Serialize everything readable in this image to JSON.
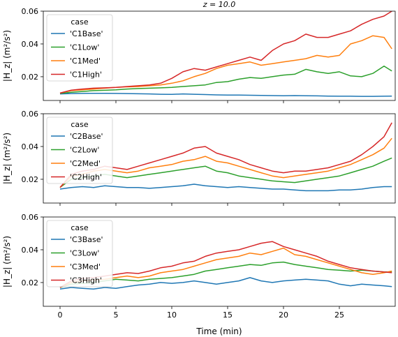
{
  "figure_title": "z = 10.0",
  "xlabel": "Time (min)",
  "ylabel": "|H_z| (m²/s²)",
  "chart_data": [
    {
      "type": "line",
      "xlim": [
        -1.5,
        30
      ],
      "ylim": [
        0.0055,
        0.06
      ],
      "xticks": [
        0,
        5,
        10,
        15,
        20,
        25
      ],
      "xtick_labels": [
        "",
        "",
        "",
        "",
        "",
        ""
      ],
      "yticks": [
        0.02,
        0.04,
        0.06
      ],
      "ytick_labels": [
        "0.02",
        "0.04",
        "0.06"
      ],
      "legend": {
        "title": "case",
        "position": "upper-left"
      },
      "series": [
        {
          "name": "'C1Base'",
          "color": "#1f77b4",
          "x": [
            0,
            1,
            2,
            3,
            4,
            5,
            6,
            7,
            8,
            9,
            10,
            11,
            12,
            13,
            14,
            15,
            16,
            17,
            18,
            19,
            20,
            21,
            22,
            23,
            24,
            25,
            26,
            27,
            28,
            29,
            29.7
          ],
          "y": [
            0.0095,
            0.0097,
            0.0098,
            0.0099,
            0.0099,
            0.0098,
            0.0097,
            0.0096,
            0.0095,
            0.0093,
            0.0092,
            0.0095,
            0.0093,
            0.0091,
            0.0089,
            0.0088,
            0.0088,
            0.0087,
            0.0086,
            0.0085,
            0.0084,
            0.0085,
            0.0084,
            0.0083,
            0.0082,
            0.0081,
            0.0081,
            0.008,
            0.008,
            0.0081,
            0.0082
          ]
        },
        {
          "name": "'C1Low'",
          "color": "#2ca02c",
          "x": [
            0,
            1,
            2,
            3,
            4,
            5,
            6,
            7,
            8,
            9,
            10,
            11,
            12,
            13,
            14,
            15,
            16,
            17,
            18,
            19,
            20,
            21,
            22,
            23,
            24,
            25,
            26,
            27,
            28,
            29,
            29.7
          ],
          "y": [
            0.0098,
            0.0105,
            0.011,
            0.0115,
            0.0117,
            0.012,
            0.0125,
            0.0128,
            0.013,
            0.0132,
            0.0135,
            0.014,
            0.0145,
            0.015,
            0.0165,
            0.017,
            0.0185,
            0.0195,
            0.019,
            0.02,
            0.021,
            0.0215,
            0.0245,
            0.023,
            0.022,
            0.023,
            0.0205,
            0.02,
            0.022,
            0.0265,
            0.0235
          ]
        },
        {
          "name": "'C1Med'",
          "color": "#ff7f0e",
          "x": [
            0,
            1,
            2,
            3,
            4,
            5,
            6,
            7,
            8,
            9,
            10,
            11,
            12,
            13,
            14,
            15,
            16,
            17,
            18,
            19,
            20,
            21,
            22,
            23,
            24,
            25,
            26,
            27,
            28,
            29,
            29.7
          ],
          "y": [
            0.01,
            0.0115,
            0.012,
            0.0125,
            0.013,
            0.0135,
            0.0138,
            0.014,
            0.0145,
            0.015,
            0.016,
            0.0175,
            0.02,
            0.022,
            0.025,
            0.027,
            0.028,
            0.029,
            0.027,
            0.028,
            0.029,
            0.03,
            0.031,
            0.033,
            0.032,
            0.033,
            0.04,
            0.042,
            0.045,
            0.044,
            0.037
          ]
        },
        {
          "name": "'C1High'",
          "color": "#d62728",
          "x": [
            0,
            1,
            2,
            3,
            4,
            5,
            6,
            7,
            8,
            9,
            10,
            11,
            12,
            13,
            14,
            15,
            16,
            17,
            18,
            19,
            20,
            21,
            22,
            23,
            24,
            25,
            26,
            27,
            28,
            29,
            29.7
          ],
          "y": [
            0.01,
            0.0118,
            0.0125,
            0.013,
            0.0132,
            0.0135,
            0.014,
            0.0145,
            0.015,
            0.016,
            0.019,
            0.023,
            0.025,
            0.024,
            0.026,
            0.028,
            0.03,
            0.032,
            0.03,
            0.036,
            0.04,
            0.042,
            0.046,
            0.044,
            0.044,
            0.046,
            0.048,
            0.052,
            0.055,
            0.057,
            0.06
          ]
        }
      ]
    },
    {
      "type": "line",
      "xlim": [
        -1.5,
        30
      ],
      "ylim": [
        0.0055,
        0.06
      ],
      "xticks": [
        0,
        5,
        10,
        15,
        20,
        25
      ],
      "xtick_labels": [
        "",
        "",
        "",
        "",
        "",
        ""
      ],
      "yticks": [
        0.02,
        0.04,
        0.06
      ],
      "ytick_labels": [
        "0.02",
        "0.04",
        "0.06"
      ],
      "legend": {
        "title": "case",
        "position": "upper-left"
      },
      "series": [
        {
          "name": "'C2Base'",
          "color": "#1f77b4",
          "x": [
            0,
            1,
            2,
            3,
            4,
            5,
            6,
            7,
            8,
            9,
            10,
            11,
            12,
            13,
            14,
            15,
            16,
            17,
            18,
            19,
            20,
            21,
            22,
            23,
            24,
            25,
            26,
            27,
            28,
            29,
            29.7
          ],
          "y": [
            0.014,
            0.015,
            0.0155,
            0.015,
            0.016,
            0.0155,
            0.015,
            0.015,
            0.0145,
            0.015,
            0.0155,
            0.016,
            0.017,
            0.016,
            0.0155,
            0.015,
            0.0155,
            0.015,
            0.0145,
            0.014,
            0.014,
            0.0135,
            0.013,
            0.013,
            0.013,
            0.0135,
            0.0135,
            0.014,
            0.015,
            0.0155,
            0.0155
          ]
        },
        {
          "name": "'C2Low'",
          "color": "#2ca02c",
          "x": [
            0,
            1,
            2,
            3,
            4,
            5,
            6,
            7,
            8,
            9,
            10,
            11,
            12,
            13,
            14,
            15,
            16,
            17,
            18,
            19,
            20,
            21,
            22,
            23,
            24,
            25,
            26,
            27,
            28,
            29,
            29.7
          ],
          "y": [
            0.015,
            0.02,
            0.021,
            0.022,
            0.023,
            0.022,
            0.021,
            0.022,
            0.023,
            0.024,
            0.025,
            0.026,
            0.027,
            0.028,
            0.025,
            0.024,
            0.022,
            0.021,
            0.02,
            0.019,
            0.0185,
            0.018,
            0.019,
            0.02,
            0.021,
            0.022,
            0.024,
            0.026,
            0.028,
            0.031,
            0.033
          ]
        },
        {
          "name": "'C2Med'",
          "color": "#ff7f0e",
          "x": [
            0,
            1,
            2,
            3,
            4,
            5,
            6,
            7,
            8,
            9,
            10,
            11,
            12,
            13,
            14,
            15,
            16,
            17,
            18,
            19,
            20,
            21,
            22,
            23,
            24,
            25,
            26,
            27,
            28,
            29,
            29.7
          ],
          "y": [
            0.015,
            0.022,
            0.023,
            0.025,
            0.026,
            0.025,
            0.024,
            0.025,
            0.027,
            0.028,
            0.029,
            0.031,
            0.032,
            0.034,
            0.031,
            0.03,
            0.028,
            0.026,
            0.024,
            0.022,
            0.021,
            0.022,
            0.023,
            0.024,
            0.025,
            0.027,
            0.029,
            0.032,
            0.035,
            0.039,
            0.045
          ]
        },
        {
          "name": "'C2High'",
          "color": "#d62728",
          "x": [
            0,
            1,
            2,
            3,
            4,
            5,
            6,
            7,
            8,
            9,
            10,
            11,
            12,
            13,
            14,
            15,
            16,
            17,
            18,
            19,
            20,
            21,
            22,
            23,
            24,
            25,
            26,
            27,
            28,
            29,
            29.7
          ],
          "y": [
            0.015,
            0.023,
            0.025,
            0.026,
            0.028,
            0.027,
            0.026,
            0.028,
            0.03,
            0.032,
            0.034,
            0.036,
            0.039,
            0.04,
            0.036,
            0.034,
            0.032,
            0.029,
            0.027,
            0.025,
            0.024,
            0.025,
            0.025,
            0.026,
            0.027,
            0.029,
            0.031,
            0.035,
            0.04,
            0.046,
            0.0545
          ]
        }
      ]
    },
    {
      "type": "line",
      "xlim": [
        -1.5,
        30
      ],
      "ylim": [
        0.0055,
        0.06
      ],
      "xticks": [
        0,
        5,
        10,
        15,
        20,
        25
      ],
      "xtick_labels": [
        "0",
        "5",
        "10",
        "15",
        "20",
        "25"
      ],
      "yticks": [
        0.02,
        0.04,
        0.06
      ],
      "ytick_labels": [
        "0.02",
        "0.04",
        "0.06"
      ],
      "legend": {
        "title": "case",
        "position": "upper-left"
      },
      "series": [
        {
          "name": "'C3Base'",
          "color": "#1f77b4",
          "x": [
            0,
            1,
            2,
            3,
            4,
            5,
            6,
            7,
            8,
            9,
            10,
            11,
            12,
            13,
            14,
            15,
            16,
            17,
            18,
            19,
            20,
            21,
            22,
            23,
            24,
            25,
            26,
            27,
            28,
            29,
            29.7
          ],
          "y": [
            0.016,
            0.017,
            0.0165,
            0.016,
            0.017,
            0.0165,
            0.0175,
            0.0185,
            0.019,
            0.02,
            0.0195,
            0.02,
            0.021,
            0.02,
            0.019,
            0.02,
            0.021,
            0.023,
            0.021,
            0.02,
            0.021,
            0.0215,
            0.022,
            0.0215,
            0.021,
            0.019,
            0.018,
            0.019,
            0.0185,
            0.018,
            0.0175
          ]
        },
        {
          "name": "'C3Low'",
          "color": "#2ca02c",
          "x": [
            0,
            1,
            2,
            3,
            4,
            5,
            6,
            7,
            8,
            9,
            10,
            11,
            12,
            13,
            14,
            15,
            16,
            17,
            18,
            19,
            20,
            21,
            22,
            23,
            24,
            25,
            26,
            27,
            28,
            29,
            29.7
          ],
          "y": [
            0.017,
            0.019,
            0.0195,
            0.02,
            0.021,
            0.022,
            0.0215,
            0.021,
            0.022,
            0.0225,
            0.023,
            0.024,
            0.025,
            0.027,
            0.028,
            0.029,
            0.03,
            0.031,
            0.0305,
            0.032,
            0.0325,
            0.031,
            0.03,
            0.029,
            0.028,
            0.0275,
            0.027,
            0.0275,
            0.027,
            0.0265,
            0.0265
          ]
        },
        {
          "name": "'C3Med'",
          "color": "#ff7f0e",
          "x": [
            0,
            1,
            2,
            3,
            4,
            5,
            6,
            7,
            8,
            9,
            10,
            11,
            12,
            13,
            14,
            15,
            16,
            17,
            18,
            19,
            20,
            21,
            22,
            23,
            24,
            25,
            26,
            27,
            28,
            29,
            29.7
          ],
          "y": [
            0.017,
            0.02,
            0.021,
            0.0215,
            0.022,
            0.023,
            0.024,
            0.023,
            0.024,
            0.026,
            0.027,
            0.028,
            0.03,
            0.032,
            0.034,
            0.035,
            0.036,
            0.038,
            0.037,
            0.039,
            0.041,
            0.037,
            0.036,
            0.034,
            0.032,
            0.03,
            0.028,
            0.026,
            0.025,
            0.026,
            0.027
          ]
        },
        {
          "name": "'C3High'",
          "color": "#d62728",
          "x": [
            0,
            1,
            2,
            3,
            4,
            5,
            6,
            7,
            8,
            9,
            10,
            11,
            12,
            13,
            14,
            15,
            16,
            17,
            18,
            19,
            20,
            21,
            22,
            23,
            24,
            25,
            26,
            27,
            28,
            29,
            29.7
          ],
          "y": [
            0.017,
            0.021,
            0.0225,
            0.023,
            0.024,
            0.025,
            0.026,
            0.0255,
            0.027,
            0.029,
            0.03,
            0.032,
            0.033,
            0.036,
            0.038,
            0.039,
            0.04,
            0.042,
            0.044,
            0.045,
            0.042,
            0.04,
            0.038,
            0.036,
            0.033,
            0.031,
            0.029,
            0.028,
            0.027,
            0.0265,
            0.026
          ]
        }
      ]
    }
  ]
}
